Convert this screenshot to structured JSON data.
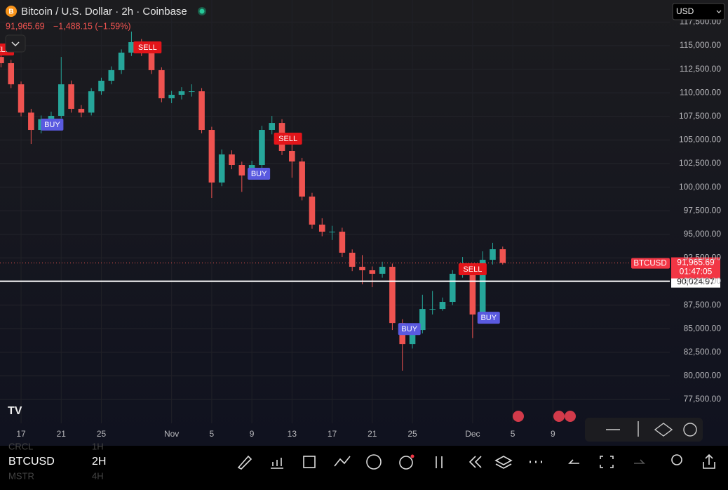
{
  "header": {
    "symbol_title": "Bitcoin / U.S. Dollar · 2h · Coinbase",
    "price": "91,965.69",
    "change": "−1,488.15 (−1.59%)",
    "currency": "USD"
  },
  "chart_data": {
    "type": "candlestick",
    "up_color": "#26a69a",
    "down_color": "#ef5350",
    "xlim": [
      14.9,
      81.3
    ],
    "xticks": [
      {
        "value": 17,
        "label": "17"
      },
      {
        "value": 21,
        "label": "21"
      },
      {
        "value": 25,
        "label": "25"
      },
      {
        "value": 32,
        "label": "Nov"
      },
      {
        "value": 36,
        "label": "5"
      },
      {
        "value": 40,
        "label": "9"
      },
      {
        "value": 44,
        "label": "13"
      },
      {
        "value": 48,
        "label": "17"
      },
      {
        "value": 52,
        "label": "21"
      },
      {
        "value": 56,
        "label": "25"
      },
      {
        "value": 62,
        "label": "Dec"
      },
      {
        "value": 66,
        "label": "5"
      },
      {
        "value": 70,
        "label": "9"
      }
    ],
    "ylim": [
      74970,
      119836
    ],
    "yticks": [
      {
        "value": 117500,
        "label": "117,500.00"
      },
      {
        "value": 115000,
        "label": "115,000.00"
      },
      {
        "value": 112500,
        "label": "112,500.00"
      },
      {
        "value": 110000,
        "label": "110,000.00"
      },
      {
        "value": 107500,
        "label": "107,500.00"
      },
      {
        "value": 105000,
        "label": "105,000.00"
      },
      {
        "value": 102500,
        "label": "102,500.00"
      },
      {
        "value": 100000,
        "label": "100,000.00"
      },
      {
        "value": 97500,
        "label": "97,500.00"
      },
      {
        "value": 95000,
        "label": "95,000.00"
      },
      {
        "value": 92500,
        "label": "92,500.00"
      },
      {
        "value": 90000,
        "label": "90,000.00"
      },
      {
        "value": 87500,
        "label": "87,500.00"
      },
      {
        "value": 85000,
        "label": "85,000.00"
      },
      {
        "value": 82500,
        "label": "82,500.00"
      },
      {
        "value": 80000,
        "label": "80,000.00"
      },
      {
        "value": 77500,
        "label": "77,500.00"
      }
    ],
    "candles": {
      "x": [
        15,
        16,
        17,
        18,
        19,
        20,
        21,
        22,
        23,
        24,
        25,
        26,
        27,
        28,
        29,
        30,
        31,
        32,
        33,
        34,
        35,
        36,
        37,
        38,
        39,
        40,
        41,
        42,
        43,
        44,
        45,
        46,
        47,
        48,
        49,
        50,
        51,
        52,
        53,
        54,
        55,
        56,
        57,
        58,
        59,
        60,
        61,
        62,
        63,
        64,
        65
      ],
      "open": [
        113800,
        113140,
        110900,
        107900,
        106070,
        107200,
        107560,
        110900,
        108300,
        107900,
        110160,
        111280,
        112400,
        114260,
        115370,
        114260,
        112400,
        109420,
        109790,
        110160,
        110160,
        106070,
        100490,
        103470,
        102350,
        101240,
        102350,
        106070,
        106810,
        103840,
        102720,
        99000,
        96030,
        95280,
        95280,
        93050,
        91560,
        91190,
        90820,
        91560,
        85600,
        83370,
        84860,
        87090,
        87090,
        87840,
        90820,
        91190,
        86500,
        92300,
        93420
      ],
      "high": [
        114300,
        113500,
        111200,
        108300,
        107600,
        108000,
        113800,
        111300,
        108700,
        110500,
        111600,
        112800,
        114600,
        116490,
        115700,
        114600,
        112700,
        110200,
        110600,
        110900,
        110500,
        106400,
        104000,
        103900,
        102700,
        102800,
        106500,
        107550,
        107200,
        104800,
        103100,
        99400,
        96700,
        95900,
        95700,
        93400,
        92800,
        91600,
        92100,
        91900,
        86000,
        85200,
        88600,
        89000,
        88300,
        91200,
        92600,
        91600,
        93200,
        94100,
        93700
      ],
      "low": [
        112700,
        110500,
        107500,
        104580,
        105700,
        106800,
        107300,
        107900,
        107400,
        107600,
        109800,
        110900,
        112000,
        113900,
        113900,
        112000,
        109000,
        108900,
        109300,
        109600,
        105700,
        98850,
        100100,
        101900,
        99500,
        100900,
        102000,
        105600,
        103400,
        101000,
        98600,
        95600,
        94800,
        94400,
        92600,
        91100,
        89700,
        89400,
        90400,
        84860,
        80550,
        82900,
        84500,
        86500,
        86900,
        87500,
        90400,
        84000,
        86000,
        91800,
        91800
      ],
      "close": [
        113140,
        110900,
        107900,
        106070,
        107200,
        107560,
        110900,
        108300,
        107900,
        110160,
        111280,
        112400,
        114260,
        115370,
        114260,
        112400,
        109420,
        109790,
        110160,
        110160,
        106070,
        100490,
        103470,
        102350,
        101240,
        102350,
        106070,
        106810,
        103840,
        102720,
        99000,
        96030,
        95280,
        95280,
        93050,
        91560,
        91190,
        90820,
        91560,
        85600,
        83370,
        84860,
        87090,
        87090,
        87840,
        90820,
        91190,
        86500,
        92300,
        93420,
        91965.69
      ]
    },
    "signals": [
      {
        "label": "SELL",
        "x": 14.9,
        "price": 114630,
        "color": "#e3151a"
      },
      {
        "label": "BUY",
        "x": 20.1,
        "price": 106670,
        "color": "#5a5ae0"
      },
      {
        "label": "SELL",
        "x": 29.6,
        "price": 114850,
        "color": "#e3151a"
      },
      {
        "label": "BUY",
        "x": 40.7,
        "price": 101460,
        "color": "#5a5ae0"
      },
      {
        "label": "SELL",
        "x": 43.6,
        "price": 105180,
        "color": "#e3151a"
      },
      {
        "label": "BUY",
        "x": 55.7,
        "price": 85000,
        "color": "#5a5ae0"
      },
      {
        "label": "SELL",
        "x": 62,
        "price": 91340,
        "color": "#e3151a"
      },
      {
        "label": "BUY",
        "x": 63.6,
        "price": 86200,
        "color": "#5a5ae0"
      }
    ],
    "last_price": {
      "value": 91965.69,
      "label": "91,965.69",
      "symbol": "BTCUSD",
      "countdown": "01:47:05"
    },
    "level": {
      "value": 90024.97,
      "label": "90,024.97"
    }
  },
  "toolbar": {
    "symbol": "BTCUSD",
    "interval": "2H",
    "watch": [
      {
        "symbol": "CRCL",
        "interval": "1H"
      },
      {
        "symbol": "MSTR",
        "interval": "4H"
      }
    ]
  }
}
